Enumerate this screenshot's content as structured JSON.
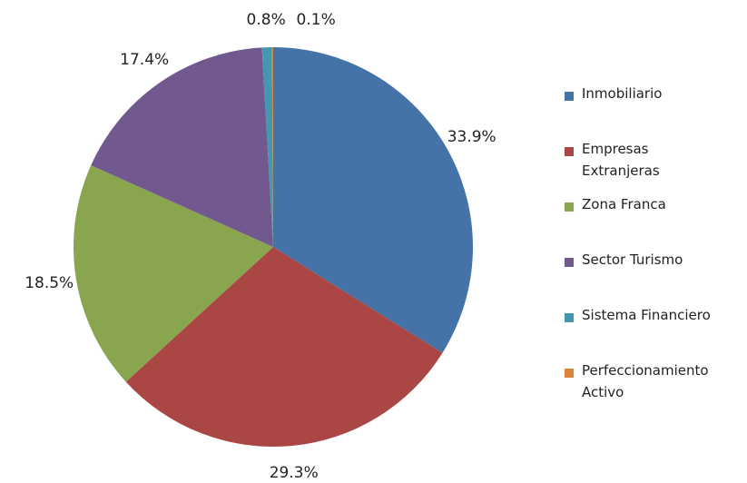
{
  "chart_data": {
    "type": "pie",
    "categories": [
      "Inmobiliario",
      "Empresas Extranjeras",
      "Zona Franca",
      "Sector Turismo",
      "Sistema Financiero",
      "Perfeccionamiento Activo"
    ],
    "values": [
      33.9,
      29.3,
      18.5,
      17.4,
      0.8,
      0.1
    ],
    "value_labels": [
      "33.9%",
      "29.3%",
      "18.5%",
      "17.4%",
      "0.8%",
      "0.1%"
    ],
    "colors": [
      "#4572a7",
      "#aa4643",
      "#89a54e",
      "#71588f",
      "#4198af",
      "#db843d"
    ],
    "legend": "right"
  }
}
